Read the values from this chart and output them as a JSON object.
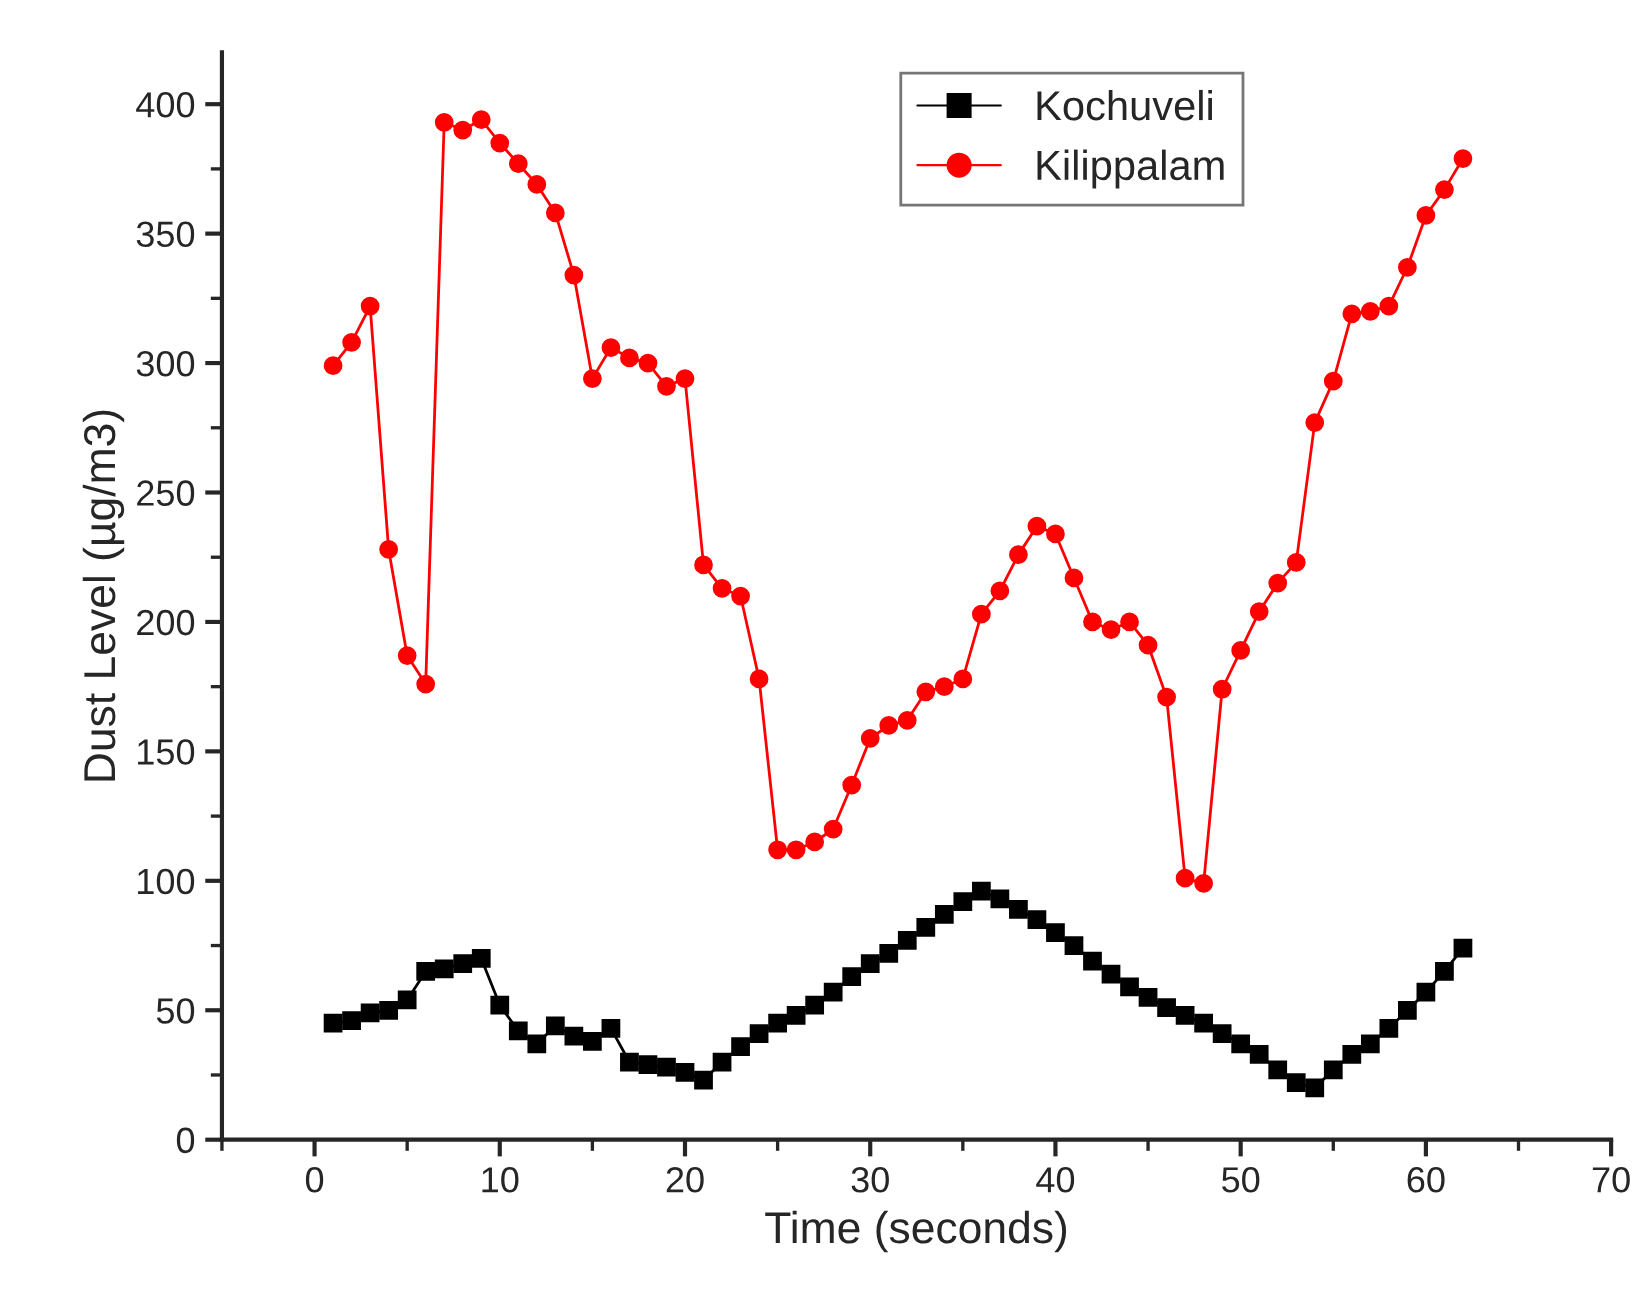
{
  "chart_data": {
    "type": "line",
    "xlabel": "Time (seconds)",
    "ylabel": "Dust Level (µg/m3)",
    "x": [
      1,
      2,
      3,
      4,
      5,
      6,
      7,
      8,
      9,
      10,
      11,
      12,
      13,
      14,
      15,
      16,
      17,
      18,
      19,
      20,
      21,
      22,
      23,
      24,
      25,
      26,
      27,
      28,
      29,
      30,
      31,
      32,
      33,
      34,
      35,
      36,
      37,
      38,
      39,
      40,
      41,
      42,
      43,
      44,
      45,
      46,
      47,
      48,
      49,
      50,
      51,
      52,
      53,
      54,
      55,
      56,
      57,
      58,
      59,
      60,
      61,
      62
    ],
    "series": [
      {
        "name": "Kochuveli",
        "color": "#000000",
        "marker": "square",
        "values": [
          45,
          46,
          49,
          50,
          54,
          65,
          66,
          68,
          70,
          52,
          42,
          37,
          44,
          40,
          38,
          43,
          30,
          29,
          28,
          26,
          23,
          30,
          36,
          41,
          45,
          48,
          52,
          57,
          63,
          68,
          72,
          77,
          82,
          87,
          92,
          96,
          93,
          89,
          85,
          80,
          75,
          69,
          64,
          59,
          55,
          51,
          48,
          45,
          41,
          37,
          33,
          27,
          22,
          20,
          27,
          33,
          37,
          43,
          50,
          57,
          65,
          74
        ]
      },
      {
        "name": "Kilippalam",
        "color": "#ff0000",
        "marker": "circle",
        "values": [
          299,
          308,
          322,
          228,
          187,
          176,
          393,
          390,
          394,
          385,
          377,
          369,
          358,
          334,
          294,
          306,
          302,
          300,
          291,
          294,
          222,
          213,
          210,
          178,
          112,
          112,
          115,
          120,
          137,
          155,
          160,
          162,
          173,
          175,
          178,
          203,
          212,
          226,
          237,
          234,
          217,
          200,
          197,
          200,
          191,
          171,
          101,
          99,
          174,
          189,
          204,
          215,
          223,
          277,
          293,
          319,
          320,
          322,
          337,
          357,
          367,
          379
        ]
      }
    ],
    "xlim": [
      -5,
      70
    ],
    "xticks": [
      0,
      10,
      20,
      30,
      40,
      50,
      60,
      70
    ],
    "ylim": [
      0,
      420
    ],
    "yticks": [
      0,
      50,
      100,
      150,
      200,
      250,
      300,
      350,
      400
    ],
    "grid": false,
    "legend": "top right",
    "line_style": "solid"
  }
}
